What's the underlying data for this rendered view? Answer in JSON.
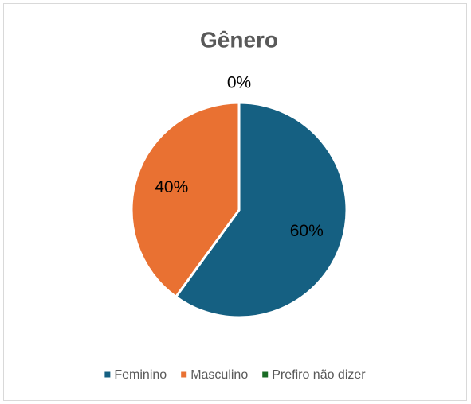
{
  "chart_data": {
    "type": "pie",
    "title": "Gênero",
    "categories": [
      "Feminino",
      "Masculino",
      "Prefiro não dizer"
    ],
    "values": [
      60,
      40,
      0
    ],
    "value_labels": [
      "60%",
      "40%",
      "0%"
    ],
    "colors": [
      "#156082",
      "#e97132",
      "#196b24"
    ],
    "legend": "bottom"
  }
}
